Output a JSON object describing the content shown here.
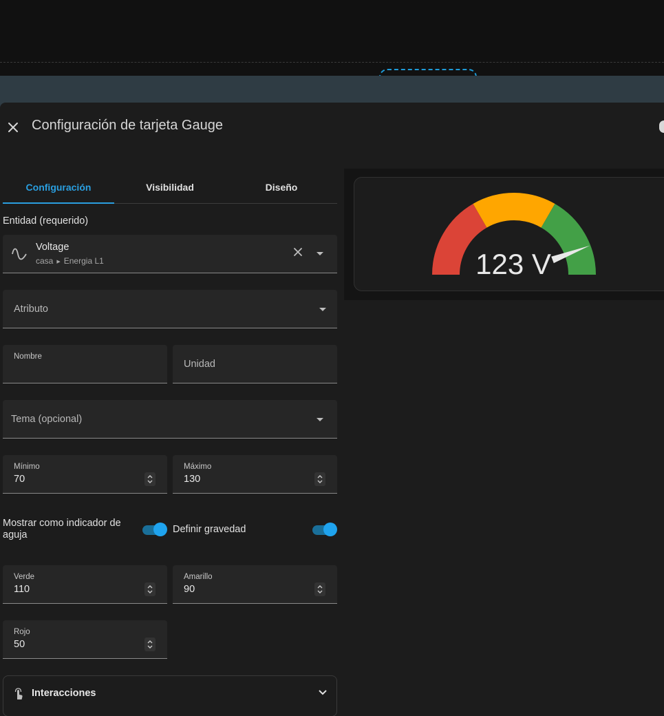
{
  "dialog": {
    "title": "Configuración de tarjeta Gauge",
    "close_icon": "close-icon"
  },
  "tabs": [
    {
      "label": "Configuración",
      "active": true
    },
    {
      "label": "Visibilidad",
      "active": false
    },
    {
      "label": "Diseño",
      "active": false
    }
  ],
  "entity": {
    "section_label": "Entidad (requerido)",
    "name": "Voltage",
    "area": "casa",
    "device": "Energia L1",
    "icon": "sine-wave-icon"
  },
  "fields": {
    "attribute_label": "Atributo",
    "name_label": "Nombre",
    "name_value": "",
    "unit_label": "Unidad",
    "theme_label": "Tema (opcional)",
    "min_label": "Mínimo",
    "min_value": "70",
    "max_label": "Máximo",
    "max_value": "130",
    "green_label": "Verde",
    "green_value": "110",
    "yellow_label": "Amarillo",
    "yellow_value": "90",
    "red_label": "Rojo",
    "red_value": "50"
  },
  "toggles": {
    "needle_label": "Mostrar como indicador de aguja",
    "needle_on": true,
    "severity_label": "Definir gravedad",
    "severity_on": true
  },
  "interactions": {
    "title": "Interacciones",
    "icon": "gesture-tap-icon"
  },
  "gauge_preview": {
    "value": 123,
    "unit": "V",
    "display": "123 V",
    "min": 70,
    "max": 130,
    "severity": {
      "red": 50,
      "yellow": 90,
      "green": 110
    },
    "colors": {
      "red": "#db4437",
      "yellow": "#ffa600",
      "green": "#43a047",
      "needle": "#e8e8e8"
    }
  },
  "colors": {
    "accent": "#2a9fe0",
    "dialog_bg": "#1c1c1c",
    "field_bg": "#262626"
  }
}
